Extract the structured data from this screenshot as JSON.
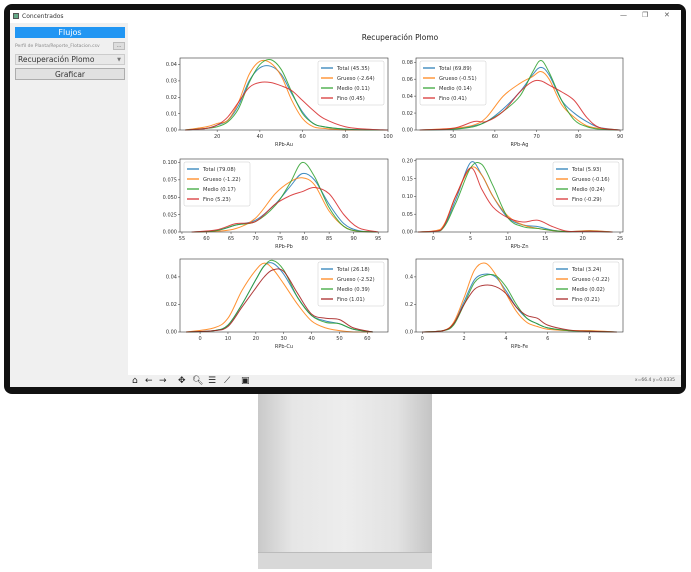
{
  "window": {
    "title": "Concentrados",
    "minimize": "—",
    "maximize": "❐",
    "close": "✕"
  },
  "sidebar": {
    "flujos_label": "Flujos",
    "file_path": "Perfil de Planta/Reporte_Flotacion.csv",
    "browse_label": "...",
    "select_value": "Recuperación Plomo",
    "graficar_label": "Graficar"
  },
  "toolbar": {
    "icons": [
      "home-icon",
      "back-icon",
      "forward-icon",
      "pan-icon",
      "zoom-icon",
      "configure-subplots-icon",
      "edit-axes-icon",
      "save-icon"
    ],
    "coords": "x=66.4 y=0.0335"
  },
  "colors": {
    "Total": "#1f77b4",
    "Grueso": "#ff7f0e",
    "Medio": "#2ca02c",
    "Fino": "#d62728",
    "Fino_dark": "#a31a1a"
  },
  "chart_data": {
    "title": "Recuperación Plomo",
    "type": "line",
    "panels": [
      {
        "xlabel": "RPb-Au",
        "xlim": [
          2.6,
          100
        ],
        "ylim": [
          0,
          0.044
        ],
        "xticks": [
          20,
          40,
          60,
          80,
          100
        ],
        "yticks": [
          0,
          0.01,
          0.02,
          0.03,
          0.04
        ],
        "ydec": 2,
        "legend": "upper-right",
        "x": [
          5,
          15,
          20,
          25,
          30,
          35,
          40,
          45,
          50,
          55,
          60,
          65,
          70,
          80,
          90,
          100
        ],
        "series": [
          {
            "name": "Total (45.35)",
            "color": "#1f77b4",
            "values": [
              0,
              0.001,
              0.003,
              0.006,
              0.015,
              0.03,
              0.038,
              0.039,
              0.034,
              0.022,
              0.011,
              0.004,
              0.002,
              0.0005,
              0,
              0
            ]
          },
          {
            "name": "Grueso (-2.64)",
            "color": "#ff7f0e",
            "values": [
              0,
              0.002,
              0.004,
              0.006,
              0.017,
              0.034,
              0.042,
              0.041,
              0.033,
              0.018,
              0.007,
              0.002,
              0.001,
              0,
              0,
              0
            ]
          },
          {
            "name": "Medio (0.11)",
            "color": "#2ca02c",
            "values": [
              0,
              0.001,
              0.002,
              0.005,
              0.013,
              0.029,
              0.04,
              0.043,
              0.037,
              0.023,
              0.01,
              0.004,
              0.002,
              0.0005,
              0,
              0
            ]
          },
          {
            "name": "Fino (0.45)",
            "color": "#d62728",
            "values": [
              0,
              0.001,
              0.003,
              0.008,
              0.017,
              0.026,
              0.029,
              0.029,
              0.027,
              0.024,
              0.018,
              0.012,
              0.007,
              0.002,
              0.0005,
              0
            ]
          }
        ]
      },
      {
        "xlabel": "RPb-Ag",
        "xlim": [
          41.1,
          90.7
        ],
        "ylim": [
          0,
          0.085
        ],
        "xticks": [
          50,
          60,
          70,
          80,
          90
        ],
        "yticks": [
          0,
          0.02,
          0.04,
          0.06,
          0.08
        ],
        "ydec": 2,
        "legend": "upper-left",
        "x": [
          42,
          50,
          55,
          58,
          62,
          66,
          69,
          71,
          73,
          76,
          79,
          82,
          85,
          90
        ],
        "series": [
          {
            "name": "Total (69.89)",
            "color": "#1f77b4",
            "values": [
              0,
              0.001,
              0.005,
              0.01,
              0.025,
              0.045,
              0.065,
              0.074,
              0.065,
              0.035,
              0.02,
              0.01,
              0.003,
              0
            ]
          },
          {
            "name": "Grueso (-0.51)",
            "color": "#ff7f0e",
            "values": [
              0,
              0.002,
              0.006,
              0.015,
              0.04,
              0.055,
              0.063,
              0.069,
              0.06,
              0.03,
              0.015,
              0.005,
              0.002,
              0
            ]
          },
          {
            "name": "Medio (0.14)",
            "color": "#2ca02c",
            "values": [
              0,
              0.001,
              0.004,
              0.01,
              0.022,
              0.04,
              0.068,
              0.082,
              0.068,
              0.035,
              0.012,
              0.004,
              0.001,
              0
            ]
          },
          {
            "name": "Fino (0.41)",
            "color": "#d62728",
            "values": [
              0,
              0.002,
              0.01,
              0.01,
              0.022,
              0.045,
              0.057,
              0.058,
              0.053,
              0.045,
              0.035,
              0.015,
              0.003,
              0
            ]
          }
        ]
      },
      {
        "xlabel": "RPb-Pb",
        "xlim": [
          54.6,
          97
        ],
        "ylim": [
          0,
          0.105
        ],
        "xticks": [
          55,
          60,
          65,
          70,
          75,
          80,
          85,
          90,
          95
        ],
        "yticks": [
          0,
          0.025,
          0.05,
          0.075,
          0.1
        ],
        "ydec": 3,
        "legend": "upper-left",
        "x": [
          57,
          62,
          66,
          70,
          74,
          77,
          79.5,
          82,
          85,
          88,
          91,
          95
        ],
        "series": [
          {
            "name": "Total (79.08)",
            "color": "#1f77b4",
            "values": [
              0,
              0.002,
              0.01,
              0.017,
              0.04,
              0.065,
              0.084,
              0.075,
              0.04,
              0.012,
              0.002,
              0
            ]
          },
          {
            "name": "Grueso (-1.22)",
            "color": "#ff7f0e",
            "values": [
              0,
              0.001,
              0.005,
              0.02,
              0.055,
              0.072,
              0.078,
              0.068,
              0.03,
              0.008,
              0.001,
              0
            ]
          },
          {
            "name": "Medio (0.17)",
            "color": "#2ca02c",
            "values": [
              0,
              0.002,
              0.01,
              0.015,
              0.038,
              0.07,
              0.1,
              0.08,
              0.035,
              0.008,
              0.001,
              0
            ]
          },
          {
            "name": "Fino (5.23)",
            "color": "#d62728",
            "values": [
              0,
              0.003,
              0.012,
              0.015,
              0.04,
              0.052,
              0.058,
              0.064,
              0.055,
              0.025,
              0.006,
              0
            ]
          }
        ]
      },
      {
        "xlabel": "RPb-Zn",
        "xlim": [
          -2.3,
          25.4
        ],
        "ylim": [
          0,
          0.205
        ],
        "xticks": [
          0,
          5,
          10,
          15,
          20,
          25
        ],
        "yticks": [
          0,
          0.05,
          0.1,
          0.15,
          0.2
        ],
        "ydec": 2,
        "legend": "upper-right",
        "x": [
          -2,
          1,
          3,
          5,
          6.5,
          8,
          10,
          12,
          14,
          16,
          18,
          21,
          24
        ],
        "series": [
          {
            "name": "Total (5.93)",
            "color": "#1f77b4",
            "values": [
              0,
              0.005,
              0.09,
              0.195,
              0.16,
              0.1,
              0.04,
              0.02,
              0.015,
              0.005,
              0.001,
              0.003,
              0
            ]
          },
          {
            "name": "Grueso (-0.16)",
            "color": "#ff7f0e",
            "values": [
              0,
              0.008,
              0.1,
              0.18,
              0.16,
              0.1,
              0.045,
              0.02,
              0.01,
              0.004,
              0.001,
              0.004,
              0
            ]
          },
          {
            "name": "Medio (0.24)",
            "color": "#2ca02c",
            "values": [
              0,
              0.004,
              0.08,
              0.18,
              0.19,
              0.13,
              0.04,
              0.015,
              0.01,
              0.004,
              0.001,
              0.002,
              0
            ]
          },
          {
            "name": "Fino (-0.29)",
            "color": "#d62728",
            "values": [
              0,
              0.005,
              0.1,
              0.18,
              0.12,
              0.07,
              0.04,
              0.028,
              0.033,
              0.015,
              0.002,
              0.002,
              0
            ]
          }
        ]
      },
      {
        "xlabel": "RPb-Cu",
        "xlim": [
          -7.2,
          67.4
        ],
        "ylim": [
          0,
          0.053
        ],
        "xticks": [
          0,
          10,
          20,
          30,
          40,
          50,
          60
        ],
        "yticks": [
          0,
          0.02,
          0.04
        ],
        "ydec": 2,
        "legend": "upper-right",
        "x": [
          -5,
          5,
          10,
          15,
          20,
          23,
          26,
          30,
          35,
          40,
          45,
          50,
          55,
          62
        ],
        "series": [
          {
            "name": "Total (26.18)",
            "color": "#1f77b4",
            "values": [
              0,
              0.001,
              0.005,
              0.02,
              0.038,
              0.048,
              0.05,
              0.042,
              0.025,
              0.012,
              0.008,
              0.006,
              0.002,
              0
            ]
          },
          {
            "name": "Grueso (-2.52)",
            "color": "#ff7f0e",
            "values": [
              0,
              0.003,
              0.01,
              0.03,
              0.045,
              0.05,
              0.046,
              0.035,
              0.02,
              0.008,
              0.003,
              0.001,
              0,
              0
            ]
          },
          {
            "name": "Medio (0.39)",
            "color": "#2ca02c",
            "values": [
              0,
              0.001,
              0.005,
              0.02,
              0.038,
              0.048,
              0.052,
              0.045,
              0.025,
              0.012,
              0.007,
              0.006,
              0.002,
              0
            ]
          },
          {
            "name": "Fino (1.01)",
            "color": "#a31a1a",
            "values": [
              0,
              0.001,
              0.004,
              0.018,
              0.032,
              0.04,
              0.045,
              0.044,
              0.028,
              0.013,
              0.01,
              0.009,
              0.003,
              0
            ]
          }
        ]
      },
      {
        "xlabel": "RPb-Fe",
        "xlim": [
          -0.3,
          9.6
        ],
        "ylim": [
          0,
          0.53
        ],
        "xticks": [
          0,
          2,
          4,
          6,
          8
        ],
        "yticks": [
          0,
          0.2,
          0.4
        ],
        "ydec": 1,
        "legend": "upper-right",
        "x": [
          0,
          1,
          1.5,
          2,
          2.5,
          3,
          3.5,
          4,
          4.5,
          5,
          5.5,
          6,
          7,
          8,
          9.3
        ],
        "series": [
          {
            "name": "Total (3.24)",
            "color": "#1f77b4",
            "values": [
              0,
              0.01,
              0.06,
              0.22,
              0.38,
              0.42,
              0.4,
              0.3,
              0.18,
              0.1,
              0.06,
              0.03,
              0.01,
              0.005,
              0
            ]
          },
          {
            "name": "Grueso (-0.22)",
            "color": "#ff7f0e",
            "values": [
              0,
              0.01,
              0.07,
              0.25,
              0.45,
              0.5,
              0.42,
              0.28,
              0.15,
              0.07,
              0.04,
              0.02,
              0.01,
              0.01,
              0
            ]
          },
          {
            "name": "Medio (0.02)",
            "color": "#2ca02c",
            "values": [
              0,
              0.01,
              0.05,
              0.2,
              0.36,
              0.41,
              0.41,
              0.33,
              0.2,
              0.1,
              0.06,
              0.03,
              0.01,
              0.005,
              0
            ]
          },
          {
            "name": "Fino (0.21)",
            "color": "#a31a1a",
            "values": [
              0,
              0.01,
              0.06,
              0.2,
              0.31,
              0.34,
              0.33,
              0.28,
              0.18,
              0.12,
              0.1,
              0.05,
              0.015,
              0.005,
              0
            ]
          }
        ]
      }
    ]
  }
}
